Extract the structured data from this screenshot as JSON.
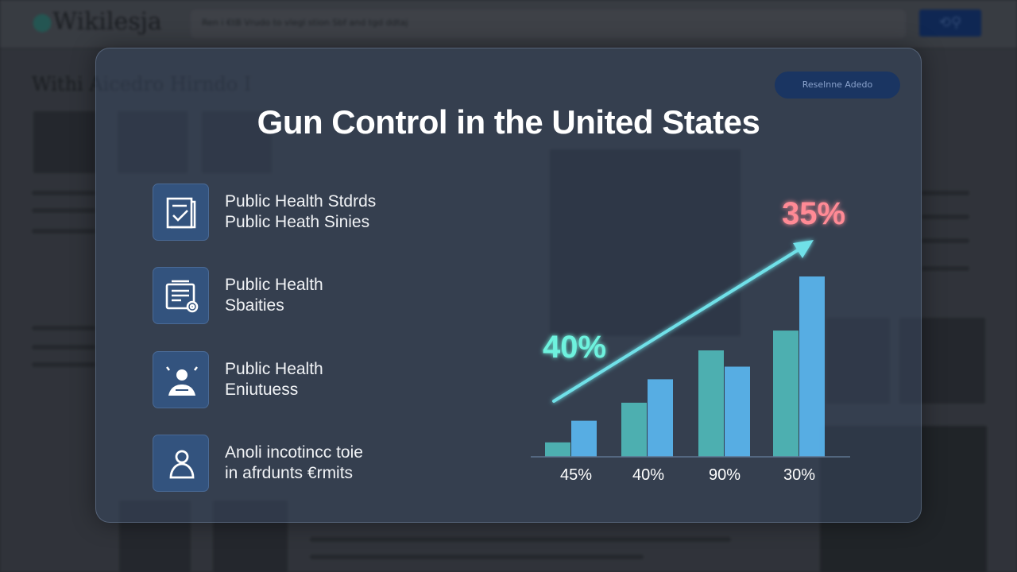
{
  "background_page": {
    "logo": "Wikilesja",
    "search_text": "Ren i €tB  Vrudo to vlegl stion Sbf and tgd ddtaj",
    "page_title": "Withi Aicedro  Hirndo I",
    "button_label": "Reselnne Adedo"
  },
  "overlay": {
    "title": "Gun Control in the United States",
    "items": [
      {
        "icon": "checklist-icon",
        "line1": "Public Health Stdrds",
        "line2": "Public Heath Sinies"
      },
      {
        "icon": "document-stamp-icon",
        "line1": "Public Health",
        "line2": "Sbaities"
      },
      {
        "icon": "person-alert-icon",
        "line1": "Public Health",
        "line2": "Eniutuess"
      },
      {
        "icon": "person-icon",
        "line1": "Anoli incotincc toie",
        "line2": "in afrdunts €rmits"
      }
    ]
  },
  "chart_data": {
    "type": "bar",
    "categories": [
      "45%",
      "40%",
      "90%",
      "30%"
    ],
    "series": [
      {
        "values": [
          8,
          30,
          59,
          70
        ],
        "color": "#4fb8b8"
      },
      {
        "values": [
          20,
          43,
          50,
          100
        ],
        "color": "#5ab6f0"
      }
    ],
    "annotations": [
      {
        "text": "40%",
        "color": "#6ef2de"
      },
      {
        "text": "35%",
        "color": "#ff8a95"
      }
    ],
    "trend_arrow": "up-right",
    "grid": false
  }
}
